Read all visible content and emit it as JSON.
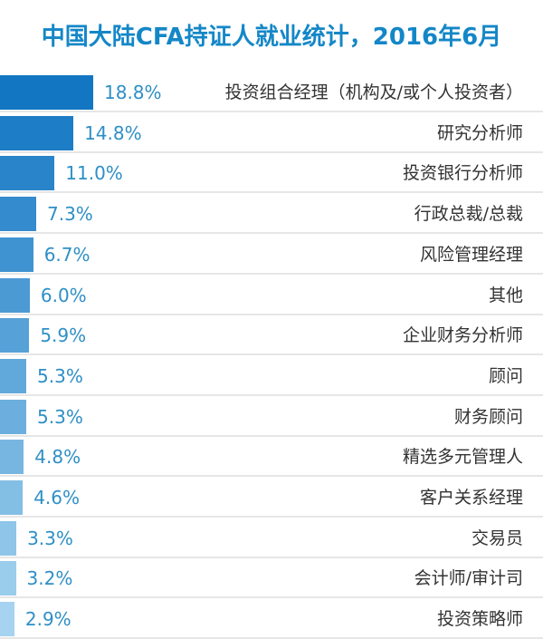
{
  "chart_data": {
    "type": "bar",
    "orientation": "horizontal",
    "title": "中国大陆CFA持证人就业统计，2016年6月",
    "categories": [
      "投资组合经理（机构及/或个人投资者）",
      "研究分析师",
      "投资银行分析师",
      "行政总裁/总裁",
      "风险管理经理",
      "其他",
      "企业财务分析师",
      "顾问",
      "财务顾问",
      "精选多元管理人",
      "客户关系经理",
      "交易员",
      "会计师/审计司",
      "投资策略师"
    ],
    "values": [
      18.8,
      14.8,
      11.0,
      7.3,
      6.7,
      6.0,
      5.9,
      5.3,
      5.3,
      4.8,
      4.6,
      3.3,
      3.2,
      2.9
    ],
    "value_labels": [
      "18.8%",
      "14.8%",
      "11.0%",
      "7.3%",
      "6.7%",
      "6.0%",
      "5.9%",
      "5.3%",
      "5.3%",
      "4.8%",
      "4.6%",
      "3.3%",
      "3.2%",
      "2.9%"
    ],
    "unit": "%",
    "colors": {
      "bar_dark": "#1276c2",
      "bar_light": "#a5d3f0",
      "value_text": "#2e8fc6",
      "title": "#1487c7",
      "label_text": "#333333",
      "separator": "#e6e6e6"
    },
    "grid": false,
    "legend": "none"
  }
}
